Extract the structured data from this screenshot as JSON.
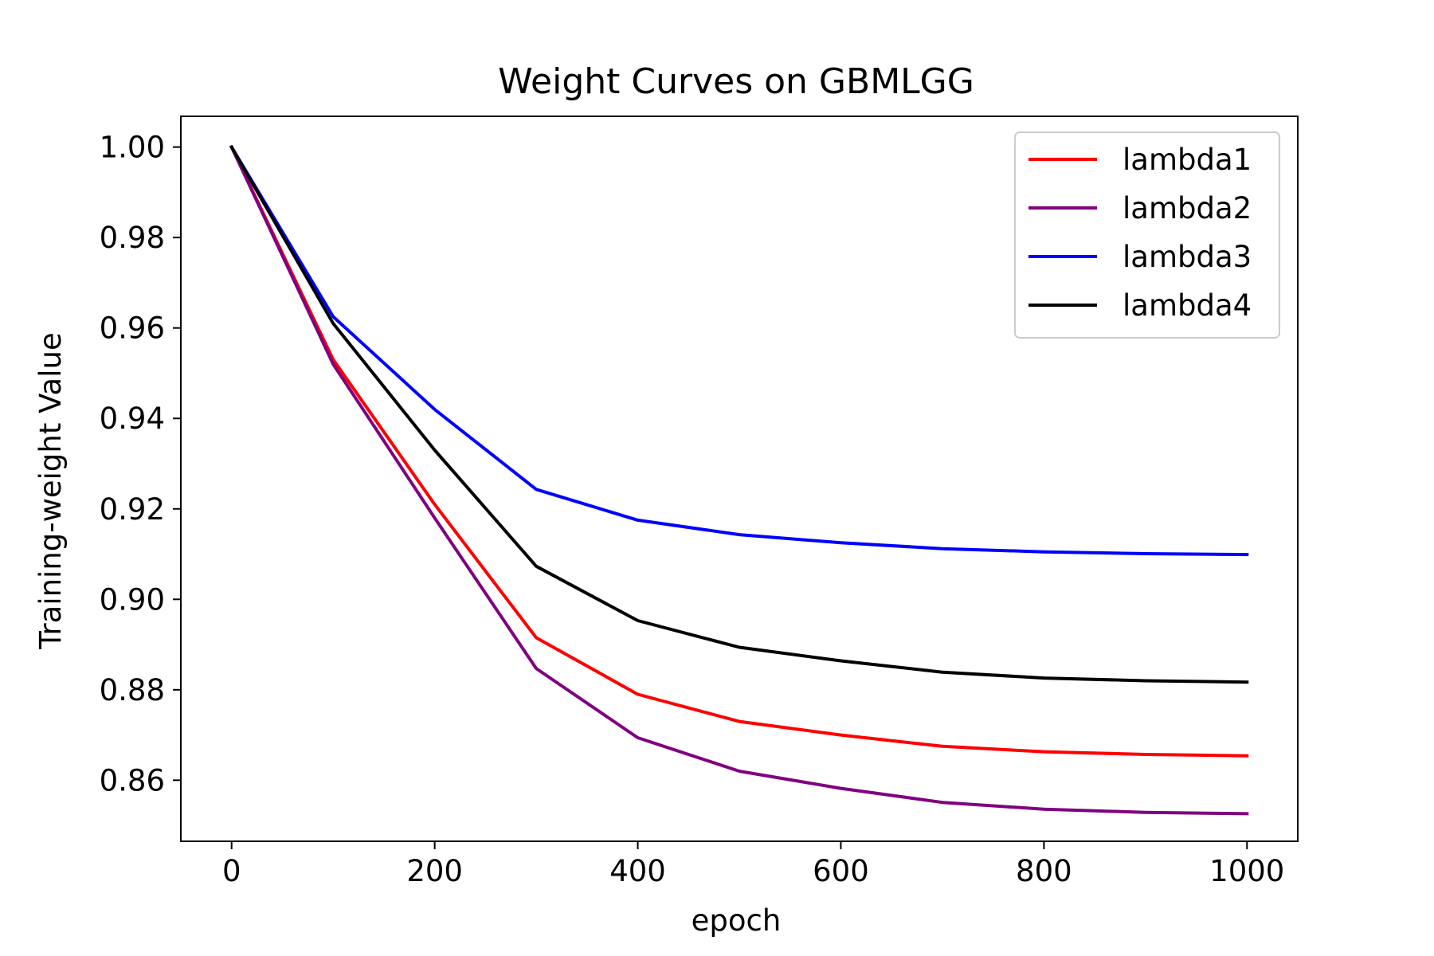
{
  "chart_data": {
    "type": "line",
    "title": "Weight Curves on GBMLGG",
    "xlabel": "epoch",
    "ylabel": "Training-weight Value",
    "xlim": [
      -50,
      1050
    ],
    "ylim": [
      0.8465,
      1.0068
    ],
    "xticks": [
      0,
      200,
      400,
      600,
      800,
      1000
    ],
    "xtick_labels": [
      "0",
      "200",
      "400",
      "600",
      "800",
      "1000"
    ],
    "yticks": [
      0.86,
      0.88,
      0.9,
      0.92,
      0.94,
      0.96,
      0.98,
      1.0
    ],
    "ytick_labels": [
      "0.86",
      "0.88",
      "0.90",
      "0.92",
      "0.94",
      "0.96",
      "0.98",
      "1.00"
    ],
    "grid": false,
    "legend_position": "top-right",
    "x": [
      0,
      100,
      200,
      300,
      400,
      500,
      600,
      700,
      800,
      900,
      1000
    ],
    "series": [
      {
        "name": "lambda1",
        "color": "#ff0000",
        "values": [
          1.0,
          0.953,
          0.921,
          0.8915,
          0.879,
          0.873,
          0.87,
          0.8675,
          0.8663,
          0.8657,
          0.8654
        ]
      },
      {
        "name": "lambda2",
        "color": "#800080",
        "values": [
          1.0,
          0.952,
          0.918,
          0.8847,
          0.8694,
          0.862,
          0.8582,
          0.8551,
          0.8536,
          0.8529,
          0.8526
        ]
      },
      {
        "name": "lambda3",
        "color": "#0000ff",
        "values": [
          1.0,
          0.9625,
          0.942,
          0.9243,
          0.9175,
          0.9143,
          0.9125,
          0.9112,
          0.9105,
          0.9101,
          0.9099
        ]
      },
      {
        "name": "lambda4",
        "color": "#000000",
        "values": [
          1.0,
          0.961,
          0.933,
          0.9073,
          0.8953,
          0.8894,
          0.8864,
          0.8839,
          0.8826,
          0.882,
          0.8817
        ]
      }
    ]
  }
}
